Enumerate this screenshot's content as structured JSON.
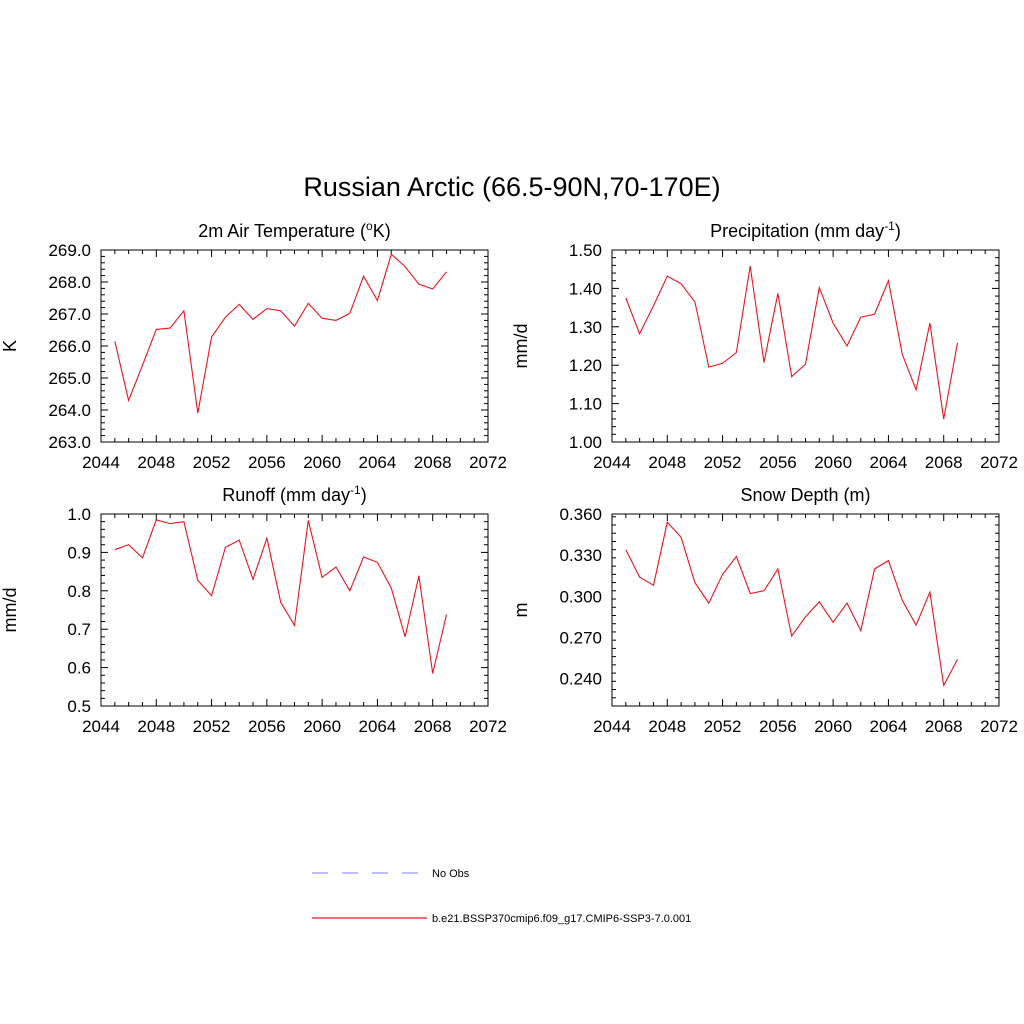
{
  "figure": {
    "title": "Russian Arctic (66.5-90N,70-170E)"
  },
  "legend": {
    "items": [
      {
        "label": "No Obs",
        "color": "#9999ff",
        "dashed": true
      },
      {
        "label": "b.e21.BSSP370cmip6.f09_g17.CMIP6-SSP3-7.0.001",
        "color": "#e8141e",
        "dashed": false
      }
    ]
  },
  "chart_data": [
    {
      "type": "line",
      "title": "2m Air Temperature (°K)",
      "title_parts": {
        "pre": "2m Air Temperature (",
        "sup": "o",
        "post": "K)"
      },
      "ylabel": "K",
      "xlim": [
        2044,
        2072
      ],
      "ylim": [
        263.0,
        269.0
      ],
      "xticks": [
        2044,
        2048,
        2052,
        2056,
        2060,
        2064,
        2068,
        2072
      ],
      "yticks": [
        "263.0",
        "264.0",
        "265.0",
        "266.0",
        "267.0",
        "268.0",
        "269.0"
      ],
      "x": [
        2045,
        2046,
        2047,
        2048,
        2049,
        2050,
        2051,
        2052,
        2053,
        2054,
        2055,
        2056,
        2057,
        2058,
        2059,
        2060,
        2061,
        2062,
        2063,
        2064,
        2065,
        2066,
        2067,
        2068,
        2069
      ],
      "series": [
        {
          "name": "b.e21.BSSP370cmip6.f09_g17.CMIP6-SSP3-7.0.001",
          "color": "#e8141e",
          "values": [
            266.15,
            264.3,
            265.4,
            266.52,
            266.56,
            267.1,
            263.9,
            266.28,
            266.9,
            267.3,
            266.83,
            267.17,
            267.1,
            266.62,
            267.33,
            266.87,
            266.8,
            267.02,
            268.18,
            267.42,
            268.87,
            268.48,
            267.93,
            267.78,
            268.32
          ]
        }
      ]
    },
    {
      "type": "line",
      "title": "Precipitation (mm day-1)",
      "title_parts": {
        "pre": "Precipitation (mm day",
        "sup": "-1",
        "post": ")"
      },
      "ylabel": "mm/d",
      "xlim": [
        2044,
        2072
      ],
      "ylim": [
        1.0,
        1.5
      ],
      "xticks": [
        2044,
        2048,
        2052,
        2056,
        2060,
        2064,
        2068,
        2072
      ],
      "yticks": [
        "1.00",
        "1.10",
        "1.20",
        "1.30",
        "1.40",
        "1.50"
      ],
      "x": [
        2045,
        2046,
        2047,
        2048,
        2049,
        2050,
        2051,
        2052,
        2053,
        2054,
        2055,
        2056,
        2057,
        2058,
        2059,
        2060,
        2061,
        2062,
        2063,
        2064,
        2065,
        2066,
        2067,
        2068,
        2069
      ],
      "series": [
        {
          "name": "b.e21.BSSP370cmip6.f09_g17.CMIP6-SSP3-7.0.001",
          "color": "#e8141e",
          "values": [
            1.375,
            1.282,
            1.355,
            1.432,
            1.412,
            1.365,
            1.195,
            1.205,
            1.233,
            1.458,
            1.207,
            1.387,
            1.17,
            1.203,
            1.402,
            1.31,
            1.25,
            1.325,
            1.333,
            1.42,
            1.228,
            1.136,
            1.31,
            1.06,
            1.258
          ]
        }
      ]
    },
    {
      "type": "line",
      "title": "Runoff (mm day-1)",
      "title_parts": {
        "pre": "Runoff (mm day",
        "sup": "-1",
        "post": ")"
      },
      "ylabel": "mm/d",
      "xlim": [
        2044,
        2072
      ],
      "ylim": [
        0.5,
        1.0
      ],
      "xticks": [
        2044,
        2048,
        2052,
        2056,
        2060,
        2064,
        2068,
        2072
      ],
      "yticks": [
        "0.5",
        "0.6",
        "0.7",
        "0.8",
        "0.9",
        "1.0"
      ],
      "x": [
        2045,
        2046,
        2047,
        2048,
        2049,
        2050,
        2051,
        2052,
        2053,
        2054,
        2055,
        2056,
        2057,
        2058,
        2059,
        2060,
        2061,
        2062,
        2063,
        2064,
        2065,
        2066,
        2067,
        2068,
        2069
      ],
      "series": [
        {
          "name": "b.e21.BSSP370cmip6.f09_g17.CMIP6-SSP3-7.0.001",
          "color": "#e8141e",
          "values": [
            0.907,
            0.92,
            0.886,
            0.985,
            0.975,
            0.98,
            0.827,
            0.787,
            0.913,
            0.932,
            0.83,
            0.937,
            0.77,
            0.71,
            0.983,
            0.835,
            0.862,
            0.8,
            0.888,
            0.874,
            0.807,
            0.68,
            0.839,
            0.585,
            0.738
          ]
        }
      ]
    },
    {
      "type": "line",
      "title": "Snow Depth (m)",
      "title_parts": {
        "pre": "Snow Depth (m)",
        "sup": "",
        "post": ""
      },
      "ylabel": "m",
      "xlim": [
        2044,
        2072
      ],
      "ylim": [
        0.22,
        0.36
      ],
      "xticks": [
        2044,
        2048,
        2052,
        2056,
        2060,
        2064,
        2068,
        2072
      ],
      "yticks": [
        "0.240",
        "0.270",
        "0.300",
        "0.330",
        "0.360"
      ],
      "ytick_values": [
        0.24,
        0.27,
        0.3,
        0.33,
        0.36
      ],
      "x": [
        2045,
        2046,
        2047,
        2048,
        2049,
        2050,
        2051,
        2052,
        2053,
        2054,
        2055,
        2056,
        2057,
        2058,
        2059,
        2060,
        2061,
        2062,
        2063,
        2064,
        2065,
        2066,
        2067,
        2068,
        2069
      ],
      "series": [
        {
          "name": "b.e21.BSSP370cmip6.f09_g17.CMIP6-SSP3-7.0.001",
          "color": "#e8141e",
          "values": [
            0.334,
            0.314,
            0.308,
            0.354,
            0.343,
            0.31,
            0.295,
            0.316,
            0.329,
            0.302,
            0.304,
            0.32,
            0.271,
            0.285,
            0.296,
            0.281,
            0.295,
            0.275,
            0.32,
            0.326,
            0.297,
            0.279,
            0.303,
            0.235,
            0.254
          ]
        }
      ]
    }
  ]
}
